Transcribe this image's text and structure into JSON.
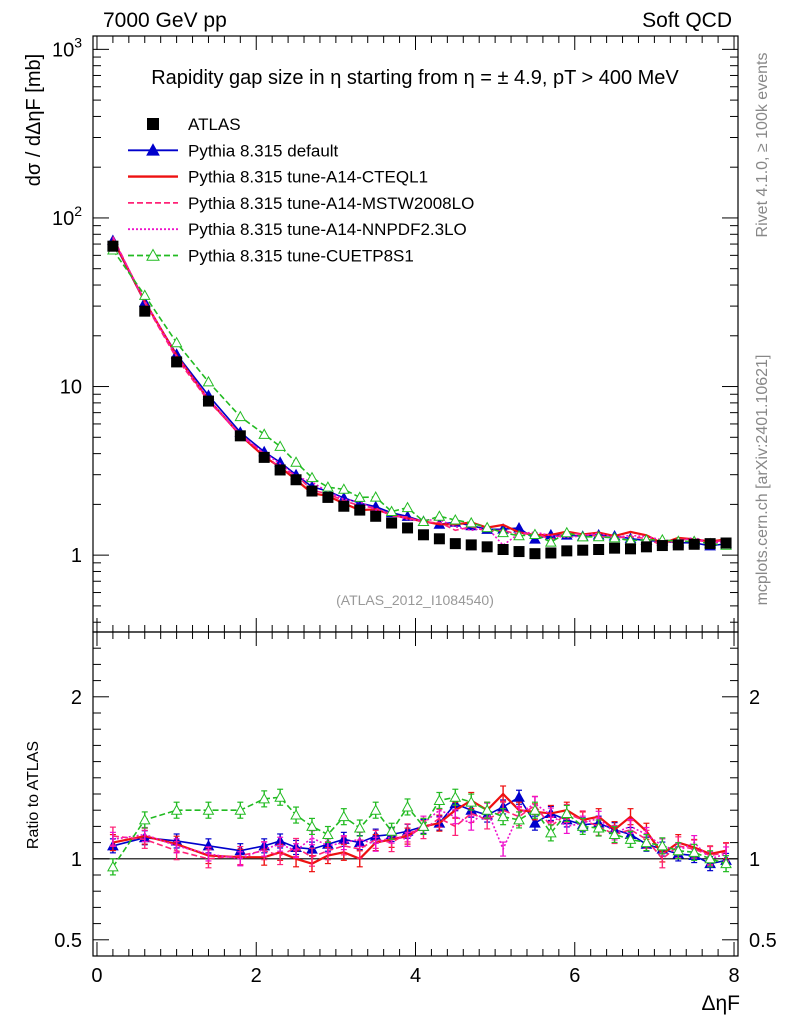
{
  "header": {
    "left": "7000 GeV pp",
    "right": "Soft QCD"
  },
  "side_labels": {
    "rivet": "Rivet 4.1.0, ≥ 100k events",
    "mcplots": "mcplots.cern.ch [arXiv:2401.10621]"
  },
  "chart_data": {
    "type": "line",
    "title": "Rapidity gap size in η starting from η = ± 4.9, pT > 400 MeV",
    "analysis_id": "(ATLAS_2012_I1084540)",
    "xlabel": "ΔηF",
    "ylabel": "dσ / dΔηF [mb]",
    "ratio_ylabel": "Ratio to ATLAS",
    "xlim": [
      -0.05,
      8.05
    ],
    "ylim": [
      0.35,
      1200
    ],
    "yscale": "log",
    "ratio_ylim": [
      0.4,
      2.4
    ],
    "x_ticks": [
      "0",
      "2",
      "4",
      "6",
      "8"
    ],
    "y_ticks": [
      "1",
      "10",
      "10^2",
      "10^3"
    ],
    "ratio_ticks": [
      "0.5",
      "1",
      "2"
    ],
    "x": [
      0.2,
      0.6,
      1.0,
      1.4,
      1.8,
      2.1,
      2.3,
      2.5,
      2.7,
      2.9,
      3.1,
      3.3,
      3.5,
      3.7,
      3.9,
      4.1,
      4.3,
      4.5,
      4.7,
      4.9,
      5.1,
      5.3,
      5.5,
      5.7,
      5.9,
      6.1,
      6.3,
      6.5,
      6.7,
      6.9,
      7.1,
      7.3,
      7.5,
      7.7,
      7.9
    ],
    "data": {
      "name": "ATLAS",
      "color": "#000000",
      "values": [
        68,
        28,
        14,
        8.2,
        5.1,
        3.8,
        3.2,
        2.8,
        2.4,
        2.2,
        1.95,
        1.85,
        1.7,
        1.55,
        1.45,
        1.32,
        1.25,
        1.17,
        1.15,
        1.12,
        1.08,
        1.05,
        1.02,
        1.03,
        1.06,
        1.07,
        1.08,
        1.1,
        1.09,
        1.12,
        1.14,
        1.15,
        1.16,
        1.17,
        1.18
      ]
    },
    "series": [
      {
        "name": "Pythia 8.315 default",
        "color": "#0000cc",
        "style": "solid-triangle",
        "ratio": [
          1.08,
          1.13,
          1.11,
          1.08,
          1.05,
          1.08,
          1.11,
          1.07,
          1.06,
          1.09,
          1.12,
          1.1,
          1.14,
          1.15,
          1.17,
          1.2,
          1.22,
          1.34,
          1.3,
          1.27,
          1.32,
          1.38,
          1.22,
          1.28,
          1.24,
          1.21,
          1.22,
          1.18,
          1.15,
          1.09,
          1.06,
          1.03,
          1.02,
          0.97,
          0.99
        ]
      },
      {
        "name": "Pythia 8.315 tune-A14-CTEQL1",
        "color": "#ee1111",
        "style": "solid",
        "ratio": [
          1.1,
          1.14,
          1.09,
          1.02,
          1.01,
          1.01,
          1.04,
          1.0,
          0.97,
          1.02,
          1.04,
          1.0,
          1.1,
          1.12,
          1.14,
          1.2,
          1.22,
          1.3,
          1.36,
          1.3,
          1.4,
          1.3,
          1.29,
          1.28,
          1.3,
          1.24,
          1.26,
          1.18,
          1.26,
          1.17,
          1.03,
          1.1,
          1.07,
          1.03,
          1.05
        ]
      },
      {
        "name": "Pythia 8.315 tune-A14-MSTW2008LO",
        "color": "#ff2277",
        "style": "dashed",
        "ratio": [
          1.14,
          1.12,
          1.05,
          1.0,
          1.02,
          1.05,
          1.02,
          1.07,
          1.01,
          1.05,
          1.08,
          1.06,
          1.12,
          1.1,
          1.16,
          1.18,
          1.25,
          1.2,
          1.28,
          1.24,
          1.3,
          1.26,
          1.33,
          1.2,
          1.28,
          1.24,
          1.2,
          1.15,
          1.18,
          1.12,
          1.0,
          1.08,
          1.06,
          1.02,
          1.04
        ]
      },
      {
        "name": "Pythia 8.315 tune-A14-NNPDF2.3LO",
        "color": "#ee11cc",
        "style": "dotted",
        "ratio": [
          1.12,
          1.15,
          1.08,
          1.03,
          1.0,
          1.06,
          1.09,
          1.05,
          1.13,
          1.08,
          1.1,
          1.12,
          1.09,
          1.14,
          1.12,
          1.22,
          1.3,
          1.26,
          1.22,
          1.3,
          1.06,
          1.28,
          1.34,
          1.27,
          1.2,
          1.22,
          1.25,
          1.16,
          1.2,
          1.15,
          1.08,
          1.05,
          1.1,
          1.0,
          1.03
        ]
      },
      {
        "name": "Pythia 8.315 tune-CUETP8S1",
        "color": "#22bb22",
        "style": "dashed-open-triangle",
        "ratio": [
          0.95,
          1.24,
          1.3,
          1.3,
          1.3,
          1.37,
          1.38,
          1.27,
          1.2,
          1.15,
          1.26,
          1.19,
          1.3,
          1.17,
          1.32,
          1.2,
          1.36,
          1.38,
          1.35,
          1.3,
          1.26,
          1.24,
          1.3,
          1.16,
          1.28,
          1.2,
          1.19,
          1.15,
          1.12,
          1.1,
          1.08,
          1.05,
          1.04,
          1.0,
          0.97
        ]
      }
    ]
  }
}
